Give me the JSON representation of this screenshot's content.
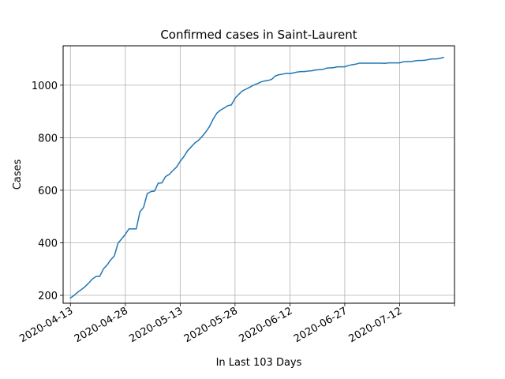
{
  "chart_data": {
    "type": "line",
    "title": "Confirmed cases in Saint-Laurent",
    "xlabel": "In Last 103 Days",
    "ylabel": "Cases",
    "x_tick_labels": [
      "2020-04-13",
      "2020-04-28",
      "2020-05-13",
      "2020-05-28",
      "2020-06-12",
      "2020-06-27",
      "2020-07-12"
    ],
    "x_ticks": [
      "2020-04-13",
      "2020-04-28",
      "2020-05-13",
      "2020-05-28",
      "2020-06-12",
      "2020-06-27",
      "2020-07-12",
      "2020-07-27"
    ],
    "y_ticks": [
      200,
      400,
      600,
      800,
      1000
    ],
    "xlim": [
      "2020-04-11",
      "2020-07-27"
    ],
    "ylim": [
      170,
      1150
    ],
    "grid": true,
    "line_color": "#1f77b4",
    "series": [
      {
        "points": [
          [
            "2020-04-13",
            190
          ],
          [
            "2020-04-14",
            200
          ],
          [
            "2020-04-15",
            212
          ],
          [
            "2020-04-16",
            222
          ],
          [
            "2020-04-17",
            233
          ],
          [
            "2020-04-18",
            247
          ],
          [
            "2020-04-19",
            262
          ],
          [
            "2020-04-20",
            272
          ],
          [
            "2020-04-21",
            272
          ],
          [
            "2020-04-22",
            300
          ],
          [
            "2020-04-23",
            315
          ],
          [
            "2020-04-24",
            335
          ],
          [
            "2020-04-25",
            350
          ],
          [
            "2020-04-26",
            398
          ],
          [
            "2020-04-27",
            415
          ],
          [
            "2020-04-28",
            432
          ],
          [
            "2020-04-29",
            453
          ],
          [
            "2020-04-30",
            453
          ],
          [
            "2020-05-01",
            453
          ],
          [
            "2020-05-02",
            518
          ],
          [
            "2020-05-03",
            535
          ],
          [
            "2020-05-04",
            587
          ],
          [
            "2020-05-05",
            595
          ],
          [
            "2020-05-06",
            597
          ],
          [
            "2020-05-07",
            627
          ],
          [
            "2020-05-08",
            628
          ],
          [
            "2020-05-09",
            652
          ],
          [
            "2020-05-10",
            660
          ],
          [
            "2020-05-11",
            675
          ],
          [
            "2020-05-12",
            688
          ],
          [
            "2020-05-13",
            710
          ],
          [
            "2020-05-14",
            728
          ],
          [
            "2020-05-15",
            750
          ],
          [
            "2020-05-16",
            765
          ],
          [
            "2020-05-17",
            780
          ],
          [
            "2020-05-18",
            790
          ],
          [
            "2020-05-19",
            805
          ],
          [
            "2020-05-20",
            822
          ],
          [
            "2020-05-21",
            842
          ],
          [
            "2020-05-22",
            870
          ],
          [
            "2020-05-23",
            893
          ],
          [
            "2020-05-24",
            905
          ],
          [
            "2020-05-25",
            913
          ],
          [
            "2020-05-26",
            922
          ],
          [
            "2020-05-27",
            925
          ],
          [
            "2020-05-28",
            950
          ],
          [
            "2020-05-29",
            965
          ],
          [
            "2020-05-30",
            978
          ],
          [
            "2020-05-31",
            985
          ],
          [
            "2020-06-01",
            992
          ],
          [
            "2020-06-02",
            1000
          ],
          [
            "2020-06-03",
            1005
          ],
          [
            "2020-06-04",
            1012
          ],
          [
            "2020-06-05",
            1016
          ],
          [
            "2020-06-06",
            1018
          ],
          [
            "2020-06-07",
            1022
          ],
          [
            "2020-06-08",
            1035
          ],
          [
            "2020-06-09",
            1040
          ],
          [
            "2020-06-10",
            1042
          ],
          [
            "2020-06-11",
            1045
          ],
          [
            "2020-06-12",
            1044
          ],
          [
            "2020-06-13",
            1047
          ],
          [
            "2020-06-14",
            1050
          ],
          [
            "2020-06-15",
            1052
          ],
          [
            "2020-06-16",
            1052
          ],
          [
            "2020-06-17",
            1054
          ],
          [
            "2020-06-18",
            1055
          ],
          [
            "2020-06-19",
            1058
          ],
          [
            "2020-06-20",
            1059
          ],
          [
            "2020-06-21",
            1060
          ],
          [
            "2020-06-22",
            1065
          ],
          [
            "2020-06-23",
            1066
          ],
          [
            "2020-06-24",
            1067
          ],
          [
            "2020-06-25",
            1070
          ],
          [
            "2020-06-26",
            1070
          ],
          [
            "2020-06-27",
            1070
          ],
          [
            "2020-06-28",
            1075
          ],
          [
            "2020-06-29",
            1078
          ],
          [
            "2020-06-30",
            1080
          ],
          [
            "2020-07-01",
            1084
          ],
          [
            "2020-07-02",
            1084
          ],
          [
            "2020-07-03",
            1084
          ],
          [
            "2020-07-04",
            1084
          ],
          [
            "2020-07-05",
            1084
          ],
          [
            "2020-07-06",
            1084
          ],
          [
            "2020-07-07",
            1084
          ],
          [
            "2020-07-08",
            1083
          ],
          [
            "2020-07-09",
            1085
          ],
          [
            "2020-07-10",
            1085
          ],
          [
            "2020-07-11",
            1085
          ],
          [
            "2020-07-12",
            1085
          ],
          [
            "2020-07-13",
            1089
          ],
          [
            "2020-07-14",
            1090
          ],
          [
            "2020-07-15",
            1090
          ],
          [
            "2020-07-16",
            1092
          ],
          [
            "2020-07-17",
            1094
          ],
          [
            "2020-07-18",
            1094
          ],
          [
            "2020-07-19",
            1095
          ],
          [
            "2020-07-20",
            1098
          ],
          [
            "2020-07-21",
            1100
          ],
          [
            "2020-07-22",
            1100
          ],
          [
            "2020-07-23",
            1102
          ],
          [
            "2020-07-24",
            1106
          ]
        ]
      }
    ]
  }
}
